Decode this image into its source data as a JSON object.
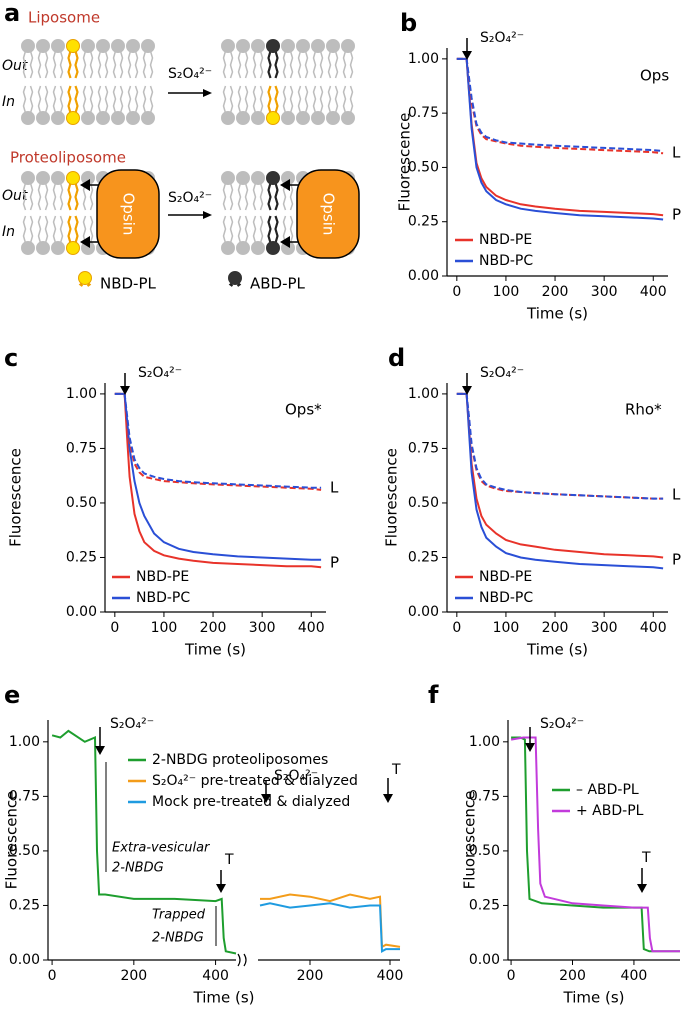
{
  "diagram": {
    "label": "a",
    "liposome": "Liposome",
    "proteoliposome": "Proteoliposome",
    "out": "Out",
    "in": "In",
    "reagent": "S₂O₄²⁻",
    "protein": "Opsin",
    "legend": [
      "NBD-PL",
      "ABD-PL"
    ]
  },
  "chart_data": [
    {
      "type": "line",
      "label": "b",
      "arrows": [
        "S₂O₄²⁻"
      ],
      "annotations": [
        "Ops",
        "L",
        "P"
      ],
      "xlabel": "Time (s)",
      "ylabel": "Fluorescence",
      "x": [
        0,
        10,
        20,
        25,
        30,
        40,
        50,
        60,
        80,
        100,
        130,
        160,
        200,
        250,
        300,
        350,
        400,
        420
      ],
      "xlim": [
        -20,
        430
      ],
      "xticks": [
        0,
        100,
        200,
        300,
        400
      ],
      "ylim": [
        0,
        1.05
      ],
      "yticks": [
        {
          "value": 0,
          "label": "0.00"
        },
        0.25,
        {
          "value": 0.5,
          "label": "0.50"
        },
        0.75,
        {
          "value": 1,
          "label": "1.00"
        }
      ],
      "series": [
        {
          "name": "NBD-PE",
          "color": "#e8332a",
          "values": [
            1,
            1,
            1,
            0.85,
            0.7,
            0.52,
            0.45,
            0.41,
            0.37,
            0.35,
            0.33,
            0.32,
            0.31,
            0.3,
            0.295,
            0.29,
            0.285,
            0.28
          ]
        },
        {
          "name": "NBD-PC",
          "color": "#2a4fd6",
          "values": [
            1,
            1,
            1,
            0.84,
            0.68,
            0.5,
            0.43,
            0.39,
            0.35,
            0.33,
            0.31,
            0.3,
            0.29,
            0.28,
            0.275,
            0.27,
            0.265,
            0.26
          ]
        },
        {
          "color": "#e8332a",
          "dash": true,
          "values": [
            1,
            1,
            1,
            0.9,
            0.8,
            0.69,
            0.65,
            0.63,
            0.62,
            0.61,
            0.6,
            0.595,
            0.59,
            0.585,
            0.58,
            0.575,
            0.57,
            0.565
          ]
        },
        {
          "color": "#2a4fd6",
          "dash": true,
          "values": [
            1,
            1,
            1,
            0.91,
            0.82,
            0.7,
            0.66,
            0.64,
            0.625,
            0.615,
            0.61,
            0.605,
            0.6,
            0.595,
            0.59,
            0.585,
            0.58,
            0.575
          ]
        }
      ]
    },
    {
      "type": "line",
      "label": "c",
      "arrows": [
        "S₂O₄²⁻"
      ],
      "annotations": [
        "Ops*",
        "L",
        "P"
      ],
      "xlabel": "Time (s)",
      "ylabel": "Fluorescence",
      "x": [
        0,
        10,
        20,
        25,
        30,
        40,
        50,
        60,
        80,
        100,
        130,
        160,
        200,
        250,
        300,
        350,
        400,
        420
      ],
      "xlim": [
        -20,
        430
      ],
      "xticks": [
        0,
        100,
        200,
        300,
        400
      ],
      "ylim": [
        0,
        1.05
      ],
      "yticks": [
        {
          "value": 0,
          "label": "0.00"
        },
        0.25,
        {
          "value": 0.5,
          "label": "0.50"
        },
        0.75,
        {
          "value": 1,
          "label": "1.00"
        }
      ],
      "series": [
        {
          "name": "NBD-PE",
          "color": "#e8332a",
          "values": [
            1,
            1,
            1,
            0.8,
            0.62,
            0.45,
            0.37,
            0.32,
            0.28,
            0.26,
            0.245,
            0.235,
            0.225,
            0.22,
            0.215,
            0.21,
            0.21,
            0.205
          ]
        },
        {
          "name": "NBD-PC",
          "color": "#2a4fd6",
          "values": [
            1,
            1,
            1,
            0.88,
            0.75,
            0.6,
            0.5,
            0.44,
            0.36,
            0.32,
            0.29,
            0.275,
            0.265,
            0.255,
            0.25,
            0.245,
            0.24,
            0.24
          ]
        },
        {
          "color": "#e8332a",
          "dash": true,
          "values": [
            1,
            1,
            1,
            0.88,
            0.78,
            0.68,
            0.64,
            0.62,
            0.61,
            0.6,
            0.595,
            0.59,
            0.585,
            0.58,
            0.575,
            0.57,
            0.565,
            0.56
          ]
        },
        {
          "color": "#2a4fd6",
          "dash": true,
          "values": [
            1,
            1,
            1,
            0.9,
            0.8,
            0.7,
            0.66,
            0.635,
            0.62,
            0.61,
            0.6,
            0.595,
            0.59,
            0.585,
            0.58,
            0.575,
            0.57,
            0.57
          ]
        }
      ]
    },
    {
      "type": "line",
      "label": "d",
      "arrows": [
        "S₂O₄²⁻"
      ],
      "annotations": [
        "Rho*",
        "L",
        "P"
      ],
      "xlabel": "Time (s)",
      "ylabel": "Fluorescence",
      "x": [
        0,
        10,
        20,
        25,
        30,
        40,
        50,
        60,
        80,
        100,
        130,
        160,
        200,
        250,
        300,
        350,
        400,
        420
      ],
      "xlim": [
        -20,
        430
      ],
      "xticks": [
        0,
        100,
        200,
        300,
        400
      ],
      "ylim": [
        0,
        1.05
      ],
      "yticks": [
        {
          "value": 0,
          "label": "0.00"
        },
        0.25,
        {
          "value": 0.5,
          "label": "0.50"
        },
        0.75,
        {
          "value": 1,
          "label": "1.00"
        }
      ],
      "series": [
        {
          "name": "NBD-PE",
          "color": "#e8332a",
          "values": [
            1,
            1,
            1,
            0.84,
            0.68,
            0.52,
            0.44,
            0.4,
            0.36,
            0.33,
            0.31,
            0.3,
            0.285,
            0.275,
            0.265,
            0.26,
            0.255,
            0.25
          ]
        },
        {
          "name": "NBD-PC",
          "color": "#2a4fd6",
          "values": [
            1,
            1,
            1,
            0.82,
            0.64,
            0.47,
            0.39,
            0.34,
            0.3,
            0.27,
            0.25,
            0.24,
            0.23,
            0.22,
            0.215,
            0.21,
            0.205,
            0.2
          ]
        },
        {
          "color": "#e8332a",
          "dash": true,
          "values": [
            1,
            1,
            1,
            0.88,
            0.76,
            0.65,
            0.6,
            0.58,
            0.565,
            0.555,
            0.55,
            0.545,
            0.54,
            0.535,
            0.53,
            0.525,
            0.52,
            0.52
          ]
        },
        {
          "color": "#2a4fd6",
          "dash": true,
          "values": [
            1,
            1,
            1,
            0.89,
            0.77,
            0.66,
            0.61,
            0.585,
            0.57,
            0.56,
            0.55,
            0.545,
            0.54,
            0.535,
            0.53,
            0.525,
            0.52,
            0.52
          ]
        }
      ]
    },
    {
      "type": "line",
      "label": "e",
      "arrows": [
        "S₂O₄²⁻",
        "T",
        "S₂O₄²⁻",
        "T"
      ],
      "annotations": [
        "Extra-vesicular",
        "2-NBDG",
        "Trapped",
        "2-NBDG"
      ],
      "xlabel": "Time (s)",
      "ylabel": "Fluorescence",
      "xlim": [
        -10,
        450
      ],
      "xticks": [
        0,
        200,
        400
      ],
      "x2lim": [
        70,
        425
      ],
      "x2ticks": [
        200,
        400
      ],
      "ylim": [
        0,
        1.1
      ],
      "yticks": [
        {
          "value": 0,
          "label": "0.00"
        },
        0.25,
        {
          "value": 0.5,
          "label": "0.50"
        },
        0.75,
        {
          "value": 1,
          "label": "1.00"
        }
      ],
      "series": [
        {
          "name": "2-NBDG proteoliposomes",
          "color": "#1e9e2e",
          "x": [
            0,
            20,
            40,
            80,
            105,
            110,
            115,
            130,
            200,
            300,
            400,
            415,
            420,
            425,
            450
          ],
          "values": [
            1.03,
            1.02,
            1.05,
            1.0,
            1.02,
            0.5,
            0.3,
            0.3,
            0.28,
            0.28,
            0.27,
            0.28,
            0.1,
            0.04,
            0.03
          ]
        },
        {
          "name": "S₂O₄²⁻ pre-treated & dialyzed",
          "color": "#f39c1a",
          "axis": "x2",
          "x": [
            75,
            100,
            150,
            200,
            250,
            300,
            350,
            375,
            380,
            390,
            425
          ],
          "values": [
            0.28,
            0.28,
            0.3,
            0.29,
            0.27,
            0.3,
            0.28,
            0.29,
            0.06,
            0.07,
            0.06
          ]
        },
        {
          "name": "Mock pre-treated & dialyzed",
          "color": "#1f9be0",
          "axis": "x2",
          "x": [
            75,
            100,
            150,
            200,
            250,
            300,
            350,
            375,
            380,
            390,
            425
          ],
          "values": [
            0.25,
            0.26,
            0.24,
            0.25,
            0.26,
            0.24,
            0.25,
            0.25,
            0.04,
            0.05,
            0.05
          ]
        }
      ]
    },
    {
      "type": "line",
      "label": "f",
      "arrows": [
        "S₂O₄²⁻",
        "T"
      ],
      "annotations": [],
      "xlabel": "Time (s)",
      "ylabel": "Fluorescence",
      "xlim": [
        -10,
        550
      ],
      "xticks": [
        0,
        200,
        400
      ],
      "ylim": [
        0,
        1.1
      ],
      "yticks": [
        {
          "value": 0,
          "label": "0.00"
        },
        0.25,
        {
          "value": 0.5,
          "label": "0.50"
        },
        0.75,
        {
          "value": 1,
          "label": "1.00"
        }
      ],
      "series": [
        {
          "name": "– ABD-PL",
          "color": "#1e9e2e",
          "x": [
            0,
            30,
            45,
            52,
            60,
            100,
            200,
            300,
            400,
            425,
            432,
            450,
            550
          ],
          "values": [
            1.02,
            1.02,
            1.01,
            0.5,
            0.28,
            0.26,
            0.25,
            0.24,
            0.24,
            0.24,
            0.05,
            0.04,
            0.04
          ]
        },
        {
          "name": "+ ABD-PL",
          "color": "#c23bdb",
          "x": [
            0,
            40,
            80,
            88,
            95,
            110,
            200,
            300,
            400,
            445,
            452,
            460,
            550
          ],
          "values": [
            1.01,
            1.02,
            1.02,
            0.6,
            0.35,
            0.29,
            0.26,
            0.25,
            0.24,
            0.24,
            0.1,
            0.04,
            0.04
          ]
        }
      ]
    }
  ]
}
